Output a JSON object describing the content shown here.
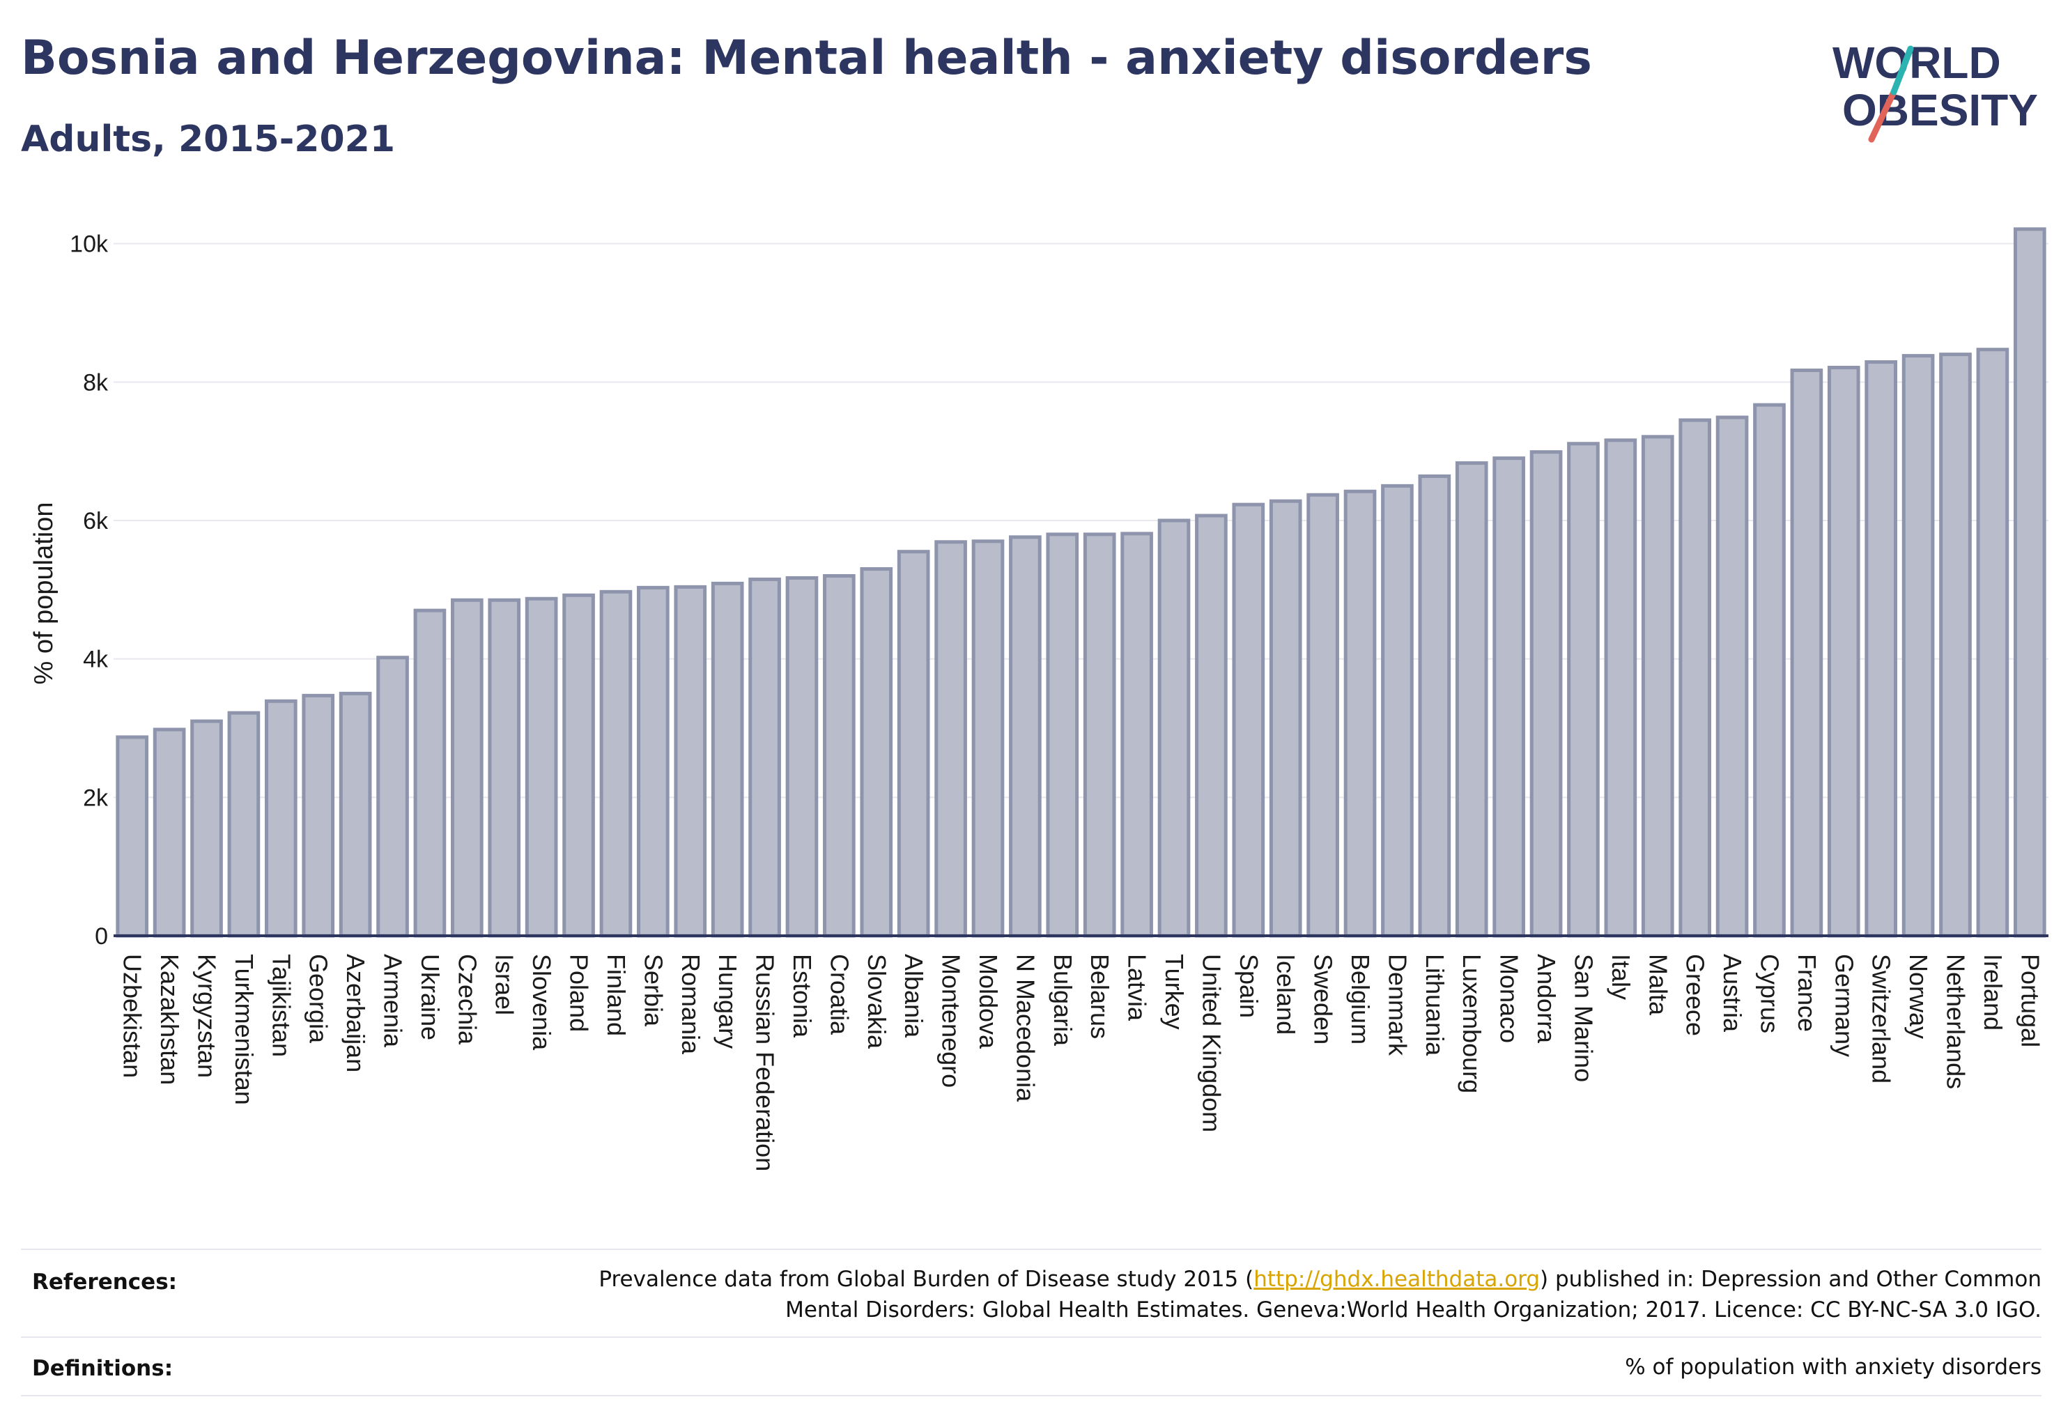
{
  "title": "Bosnia and Herzegovina: Mental health - anxiety disorders",
  "subtitle": "Adults, 2015-2021",
  "logo": {
    "line1": "W",
    "line1b": "RLD",
    "line2": "BESITY",
    "colors": {
      "navy": "#2d3561",
      "teal": "#2ab3b1",
      "coral": "#e0645a"
    }
  },
  "references": {
    "label": "References:",
    "text_before": "Prevalence data from Global Burden of Disease study 2015 (",
    "link": "http://ghdx.healthdata.org",
    "text_after": ") published in: Depression and Other Common",
    "line2": "Mental Disorders: Global Health Estimates. Geneva:World Health Organization; 2017. Licence: CC BY-NC-SA 3.0 IGO."
  },
  "definitions": {
    "label": "Definitions:",
    "text": "% of population with anxiety disorders"
  },
  "chart_data": {
    "type": "bar",
    "ylabel": "% of population",
    "ylim": [
      0,
      10500
    ],
    "yticks": [
      0,
      2000,
      4000,
      6000,
      8000,
      10000
    ],
    "ytick_labels": [
      "0",
      "2k",
      "4k",
      "6k",
      "8k",
      "10k"
    ],
    "grid": true,
    "colors": {
      "bar_fill": "#b8bccb",
      "bar_stroke": "#8e94ab",
      "axis": "#2d3561",
      "grid": "#e8e8ee"
    },
    "categories": [
      "Uzbekistan",
      "Kazakhstan",
      "Kyrgyzstan",
      "Turkmenistan",
      "Tajikistan",
      "Georgia",
      "Azerbaijan",
      "Armenia",
      "Ukraine",
      "Czechia",
      "Israel",
      "Slovenia",
      "Poland",
      "Finland",
      "Serbia",
      "Romania",
      "Hungary",
      "Russian Federation",
      "Estonia",
      "Croatia",
      "Slovakia",
      "Albania",
      "Montenegro",
      "Moldova",
      "N Macedonia",
      "Bulgaria",
      "Belarus",
      "Latvia",
      "Turkey",
      "United Kingdom",
      "Spain",
      "Iceland",
      "Sweden",
      "Belgium",
      "Denmark",
      "Lithuania",
      "Luxembourg",
      "Monaco",
      "Andorra",
      "San Marino",
      "Italy",
      "Malta",
      "Greece",
      "Austria",
      "Cyprus",
      "France",
      "Germany",
      "Switzerland",
      "Norway",
      "Netherlands",
      "Ireland",
      "Portugal"
    ],
    "values": [
      2870,
      2980,
      3100,
      3220,
      3390,
      3470,
      3500,
      4020,
      4700,
      4850,
      4850,
      4870,
      4920,
      4970,
      5030,
      5040,
      5090,
      5150,
      5170,
      5200,
      5300,
      5550,
      5690,
      5700,
      5760,
      5800,
      5800,
      5810,
      6000,
      6070,
      6230,
      6280,
      6370,
      6420,
      6500,
      6640,
      6830,
      6900,
      6990,
      7110,
      7160,
      7210,
      7450,
      7490,
      7670,
      8170,
      8210,
      8290,
      8380,
      8400,
      8470,
      10210
    ]
  }
}
